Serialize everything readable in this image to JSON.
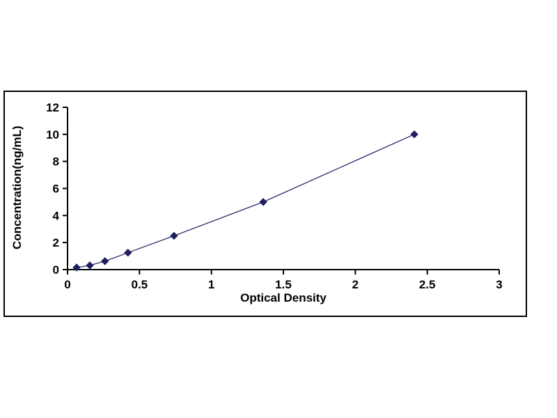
{
  "chart_data": {
    "type": "line",
    "title": "",
    "xlabel": "Optical Density",
    "ylabel": "Concentration(ng/mL)",
    "x": [
      0.063,
      0.155,
      0.26,
      0.42,
      0.74,
      1.36,
      2.41
    ],
    "y": [
      0.156,
      0.312,
      0.625,
      1.25,
      2.5,
      5.0,
      10.0
    ],
    "xlim": [
      0,
      3
    ],
    "ylim": [
      0,
      12
    ],
    "x_ticks": [
      0,
      0.5,
      1,
      1.5,
      2,
      2.5,
      3
    ],
    "x_tick_labels": [
      "0",
      "0.5",
      "1",
      "1.5",
      "2",
      "2.5",
      "3"
    ],
    "y_ticks": [
      0,
      2,
      4,
      6,
      8,
      10,
      12
    ],
    "y_tick_labels": [
      "0",
      "2",
      "4",
      "6",
      "8",
      "10",
      "12"
    ],
    "grid": false,
    "legend": "none",
    "marker": "diamond",
    "colors": {
      "line": "#2b2b6b",
      "marker": "#1f1f5f",
      "axis": "#000000",
      "text": "#000000",
      "panel_border": "#000000",
      "background": "#ffffff"
    }
  }
}
